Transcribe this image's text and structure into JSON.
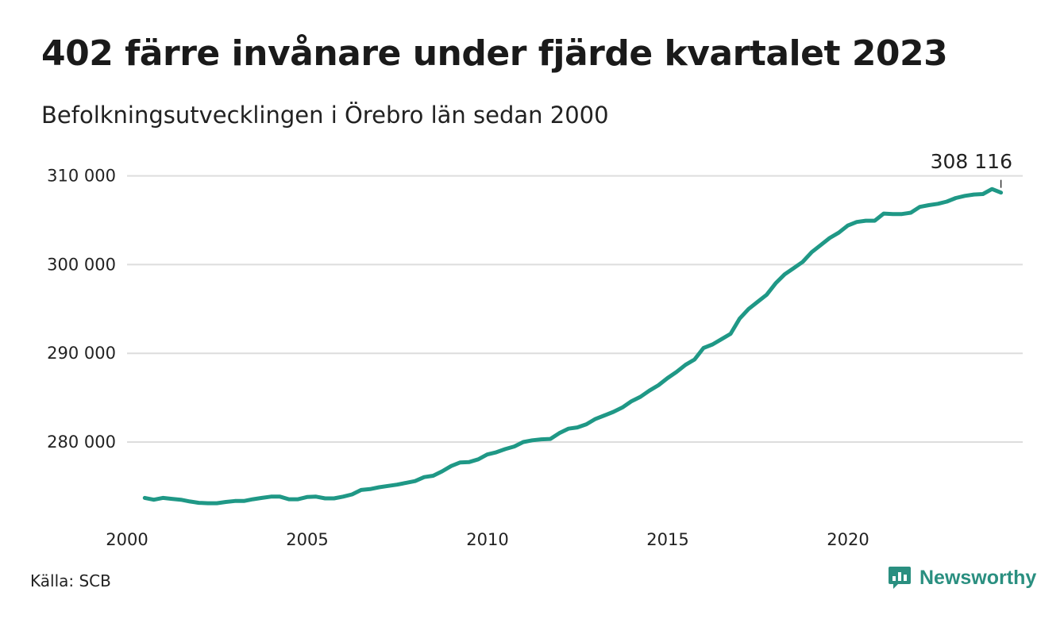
{
  "header": {
    "title": "402 färre invånare under fjärde kvartalet 2023",
    "subtitle": "Befolkningsutvecklingen i Örebro län sedan 2000"
  },
  "footer": {
    "source": "Källa: SCB",
    "brand": "Newsworthy",
    "brand_icon": "newsworthy-logo-icon"
  },
  "colors": {
    "line": "#1f9886",
    "grid": "#dddddd",
    "brand": "#2a8f80"
  },
  "chart_data": {
    "type": "line",
    "title": "402 färre invånare under fjärde kvartalet 2023",
    "subtitle": "Befolkningsutvecklingen i Örebro län sedan 2000",
    "xlabel": "",
    "ylabel": "",
    "xlim": [
      2000,
      2024.25
    ],
    "ylim": [
      272000,
      310000
    ],
    "x_ticks": [
      2000,
      2005,
      2010,
      2015,
      2020
    ],
    "x_tick_labels": [
      "2000",
      "2005",
      "2010",
      "2015",
      "2020"
    ],
    "y_ticks": [
      280000,
      290000,
      300000,
      310000
    ],
    "y_tick_labels": [
      "280 000",
      "290 000",
      "300 000",
      "310 000"
    ],
    "grid": true,
    "legend": "none",
    "end_label": "308 116",
    "series": [
      {
        "x": [
          2000.25,
          2000.5,
          2000.75,
          2001.0,
          2001.25,
          2001.5,
          2001.75,
          2002.0,
          2002.25,
          2002.5,
          2002.75,
          2003.0,
          2003.25,
          2003.5,
          2003.75,
          2004.0,
          2004.25,
          2004.5,
          2004.75,
          2005.0,
          2005.25,
          2005.5,
          2005.75,
          2006.0,
          2006.25,
          2006.5,
          2006.75,
          2007.0,
          2007.25,
          2007.5,
          2007.75,
          2008.0,
          2008.25,
          2008.5,
          2008.75,
          2009.0,
          2009.25,
          2009.5,
          2009.75,
          2010.0,
          2010.25,
          2010.5,
          2010.75,
          2011.0,
          2011.25,
          2011.5,
          2011.75,
          2012.0,
          2012.25,
          2012.5,
          2012.75,
          2013.0,
          2013.25,
          2013.5,
          2013.75,
          2014.0,
          2014.25,
          2014.5,
          2014.75,
          2015.0,
          2015.25,
          2015.5,
          2015.75,
          2016.0,
          2016.25,
          2016.5,
          2016.75,
          2017.0,
          2017.25,
          2017.5,
          2017.75,
          2018.0,
          2018.25,
          2018.5,
          2018.75,
          2019.0,
          2019.25,
          2019.5,
          2019.75,
          2020.0,
          2020.25,
          2020.5,
          2020.75,
          2021.0,
          2021.25,
          2021.5,
          2021.75,
          2022.0,
          2022.25,
          2022.5,
          2022.75,
          2023.0,
          2023.25,
          2023.5,
          2023.75,
          2024.0
        ],
        "values": [
          273700,
          273500,
          273700,
          273600,
          273500,
          273300,
          273150,
          273100,
          273100,
          273250,
          273350,
          273350,
          273550,
          273700,
          273850,
          273850,
          273550,
          273550,
          273800,
          273850,
          273650,
          273650,
          273850,
          274100,
          274600,
          274700,
          274900,
          275050,
          275200,
          275400,
          275600,
          276050,
          276200,
          276700,
          277300,
          277700,
          277750,
          278050,
          278600,
          278850,
          279200,
          279500,
          280000,
          280200,
          280300,
          280350,
          281000,
          281500,
          281650,
          282000,
          282600,
          283000,
          283400,
          283900,
          284600,
          285100,
          285800,
          286400,
          287200,
          287900,
          288700,
          289300,
          290600,
          291000,
          291600,
          292200,
          293900,
          295000,
          295800,
          296600,
          297900,
          298900,
          299600,
          300300,
          301400,
          302200,
          303000,
          303600,
          304400,
          304800,
          304950,
          304950,
          305750,
          305700,
          305700,
          305850,
          306500,
          306700,
          306850,
          307100,
          307500,
          307750,
          307900,
          307950,
          308518,
          308116
        ]
      }
    ]
  }
}
